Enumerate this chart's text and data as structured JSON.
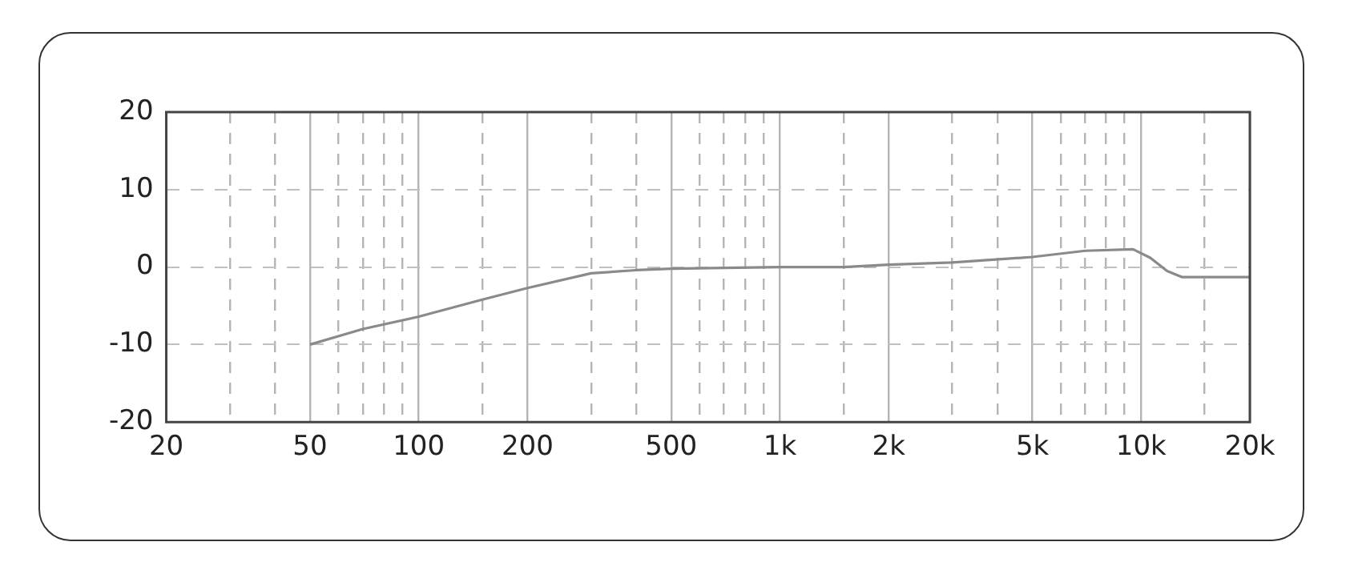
{
  "chart_data": {
    "type": "line",
    "x": [
      50,
      70,
      100,
      150,
      200,
      300,
      400,
      500,
      700,
      1000,
      1500,
      2000,
      3000,
      5000,
      7000,
      9500,
      10600,
      11800,
      13000,
      20000
    ],
    "series": [
      {
        "color": "#8a8a8a",
        "values": [
          -10,
          -8,
          -6.4,
          -4.2,
          -2.7,
          -0.8,
          -0.4,
          -0.2,
          -0.1,
          0,
          0,
          0.3,
          0.6,
          1.3,
          2.1,
          2.3,
          1.2,
          -0.5,
          -1.3,
          -1.3
        ]
      }
    ],
    "xlim": [
      20,
      20000
    ],
    "ylim": [
      -20,
      20
    ],
    "log": "x",
    "xticks": [
      20,
      {
        "value": 30,
        "label": null
      },
      {
        "value": 40,
        "label": null
      },
      50,
      {
        "value": 60,
        "label": null
      },
      {
        "value": 70,
        "label": null
      },
      {
        "value": 80,
        "label": null
      },
      {
        "value": 90,
        "label": null
      },
      100,
      {
        "value": 150,
        "label": null
      },
      200,
      {
        "value": 300,
        "label": null
      },
      {
        "value": 400,
        "label": null
      },
      500,
      {
        "value": 600,
        "label": null
      },
      {
        "value": 700,
        "label": null
      },
      {
        "value": 800,
        "label": null
      },
      {
        "value": 900,
        "label": null
      },
      {
        "value": 1000,
        "label": "1k"
      },
      {
        "value": 1500,
        "label": null
      },
      {
        "value": 2000,
        "label": "2k"
      },
      {
        "value": 3000,
        "label": null
      },
      {
        "value": 4000,
        "label": null
      },
      {
        "value": 5000,
        "label": "5k"
      },
      {
        "value": 6000,
        "label": null
      },
      {
        "value": 7000,
        "label": null
      },
      {
        "value": 8000,
        "label": null
      },
      {
        "value": 9000,
        "label": null
      },
      {
        "value": 10000,
        "label": "10k"
      },
      {
        "value": 15000,
        "label": null
      },
      {
        "value": 20000,
        "label": "20k"
      }
    ],
    "yticks": [
      -20,
      -10,
      0,
      10,
      20
    ],
    "grid": true,
    "marker": "none",
    "line_style": "solid",
    "legend": false
  }
}
